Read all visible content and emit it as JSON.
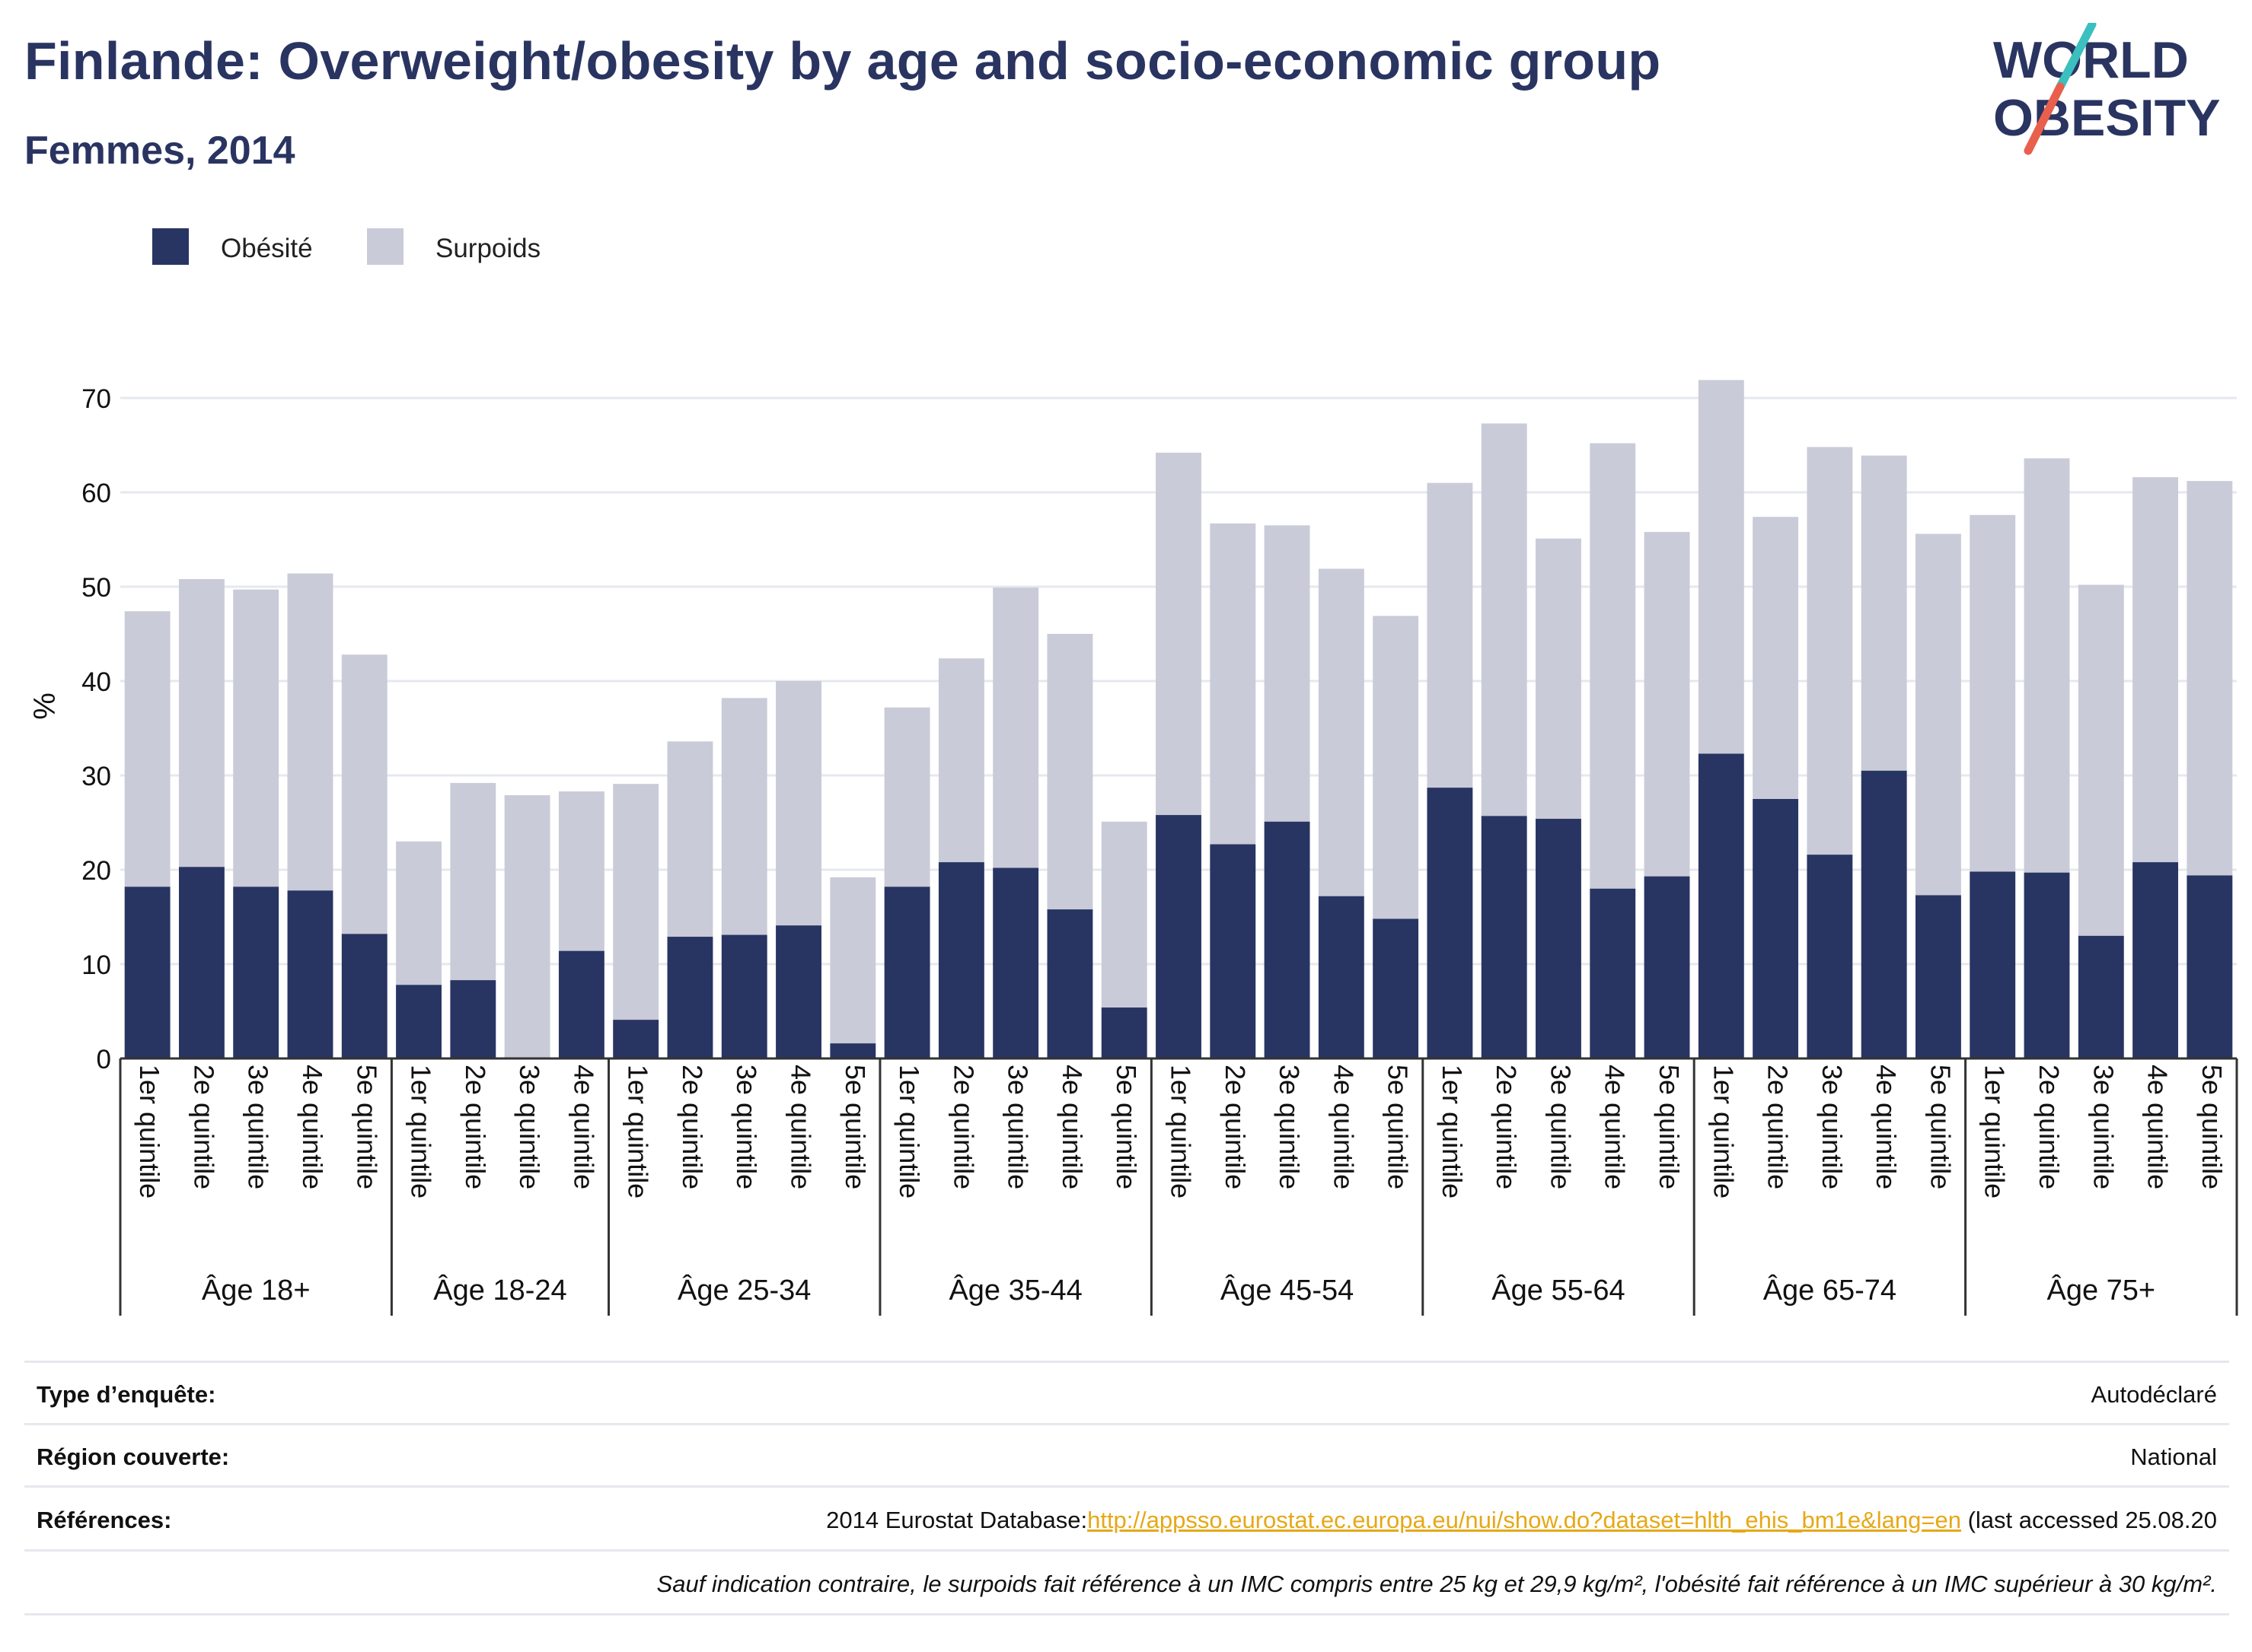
{
  "header": {
    "title": "Finlande: Overweight/obesity by age and socio-economic group",
    "subtitle": "Femmes, 2014"
  },
  "logo": {
    "line1": "WORLD",
    "line2": "OBESITY",
    "colors": {
      "text": "#2a3461",
      "slash_top": "#3bbfbf",
      "slash_bottom": "#e8604c"
    }
  },
  "colors": {
    "obesity": "#283562",
    "overweight": "#c9cbd8",
    "grid": "#e6e8ef",
    "axis": "#333333",
    "link": "#e6a817"
  },
  "chart_data": {
    "type": "bar",
    "stacked": true,
    "ylabel": "%",
    "ylim": [
      0,
      72
    ],
    "yticks": [
      0,
      10,
      20,
      30,
      40,
      50,
      60,
      70
    ],
    "grid": true,
    "legend_position": "top-left",
    "series": [
      {
        "name": "Obésité",
        "color": "#283562"
      },
      {
        "name": "Surpoids",
        "color": "#c9cbd8"
      }
    ],
    "groups": [
      {
        "label": "Âge 18+",
        "bars": [
          {
            "category": "1er quintile",
            "obesity": 18.2,
            "total": 47.4
          },
          {
            "category": "2e quintile",
            "obesity": 20.3,
            "total": 50.8
          },
          {
            "category": "3e quintile",
            "obesity": 18.2,
            "total": 49.7
          },
          {
            "category": "4e quintile",
            "obesity": 17.8,
            "total": 51.4
          },
          {
            "category": "5e quintile",
            "obesity": 13.2,
            "total": 42.8
          }
        ]
      },
      {
        "label": "Âge 18-24",
        "bars": [
          {
            "category": "1er quintile",
            "obesity": 7.8,
            "total": 23.0
          },
          {
            "category": "2e quintile",
            "obesity": 8.3,
            "total": 29.2
          },
          {
            "category": "3e quintile",
            "obesity": 0,
            "total": 27.9
          },
          {
            "category": "4e quintile",
            "obesity": 11.4,
            "total": 28.3
          }
        ]
      },
      {
        "label": "Âge 25-34",
        "bars": [
          {
            "category": "1er quintile",
            "obesity": 4.1,
            "total": 29.1
          },
          {
            "category": "2e quintile",
            "obesity": 12.9,
            "total": 33.6
          },
          {
            "category": "3e quintile",
            "obesity": 13.1,
            "total": 38.2
          },
          {
            "category": "4e quintile",
            "obesity": 14.1,
            "total": 40.0
          },
          {
            "category": "5e quintile",
            "obesity": 1.6,
            "total": 19.2
          }
        ]
      },
      {
        "label": "Âge 35-44",
        "bars": [
          {
            "category": "1er quintile",
            "obesity": 18.2,
            "total": 37.2
          },
          {
            "category": "2e quintile",
            "obesity": 20.8,
            "total": 42.4
          },
          {
            "category": "3e quintile",
            "obesity": 20.2,
            "total": 49.9
          },
          {
            "category": "4e quintile",
            "obesity": 15.8,
            "total": 45.0
          },
          {
            "category": "5e quintile",
            "obesity": 5.4,
            "total": 25.1
          }
        ]
      },
      {
        "label": "Âge 45-54",
        "bars": [
          {
            "category": "1er quintile",
            "obesity": 25.8,
            "total": 64.2
          },
          {
            "category": "2e quintile",
            "obesity": 22.7,
            "total": 56.7
          },
          {
            "category": "3e quintile",
            "obesity": 25.1,
            "total": 56.5
          },
          {
            "category": "4e quintile",
            "obesity": 17.2,
            "total": 51.9
          },
          {
            "category": "5e quintile",
            "obesity": 14.8,
            "total": 46.9
          }
        ]
      },
      {
        "label": "Âge 55-64",
        "bars": [
          {
            "category": "1er quintile",
            "obesity": 28.7,
            "total": 61.0
          },
          {
            "category": "2e quintile",
            "obesity": 25.7,
            "total": 67.3
          },
          {
            "category": "3e quintile",
            "obesity": 25.4,
            "total": 55.1
          },
          {
            "category": "4e quintile",
            "obesity": 18.0,
            "total": 65.2
          },
          {
            "category": "5e quintile",
            "obesity": 19.3,
            "total": 55.8
          }
        ]
      },
      {
        "label": "Âge 65-74",
        "bars": [
          {
            "category": "1er quintile",
            "obesity": 32.3,
            "total": 71.9
          },
          {
            "category": "2e quintile",
            "obesity": 27.5,
            "total": 57.4
          },
          {
            "category": "3e quintile",
            "obesity": 21.6,
            "total": 64.8
          },
          {
            "category": "4e quintile",
            "obesity": 30.5,
            "total": 63.9
          },
          {
            "category": "5e quintile",
            "obesity": 17.3,
            "total": 55.6
          }
        ]
      },
      {
        "label": "Âge 75+",
        "bars": [
          {
            "category": "1er quintile",
            "obesity": 19.8,
            "total": 57.6
          },
          {
            "category": "2e quintile",
            "obesity": 19.7,
            "total": 63.6
          },
          {
            "category": "3e quintile",
            "obesity": 13.0,
            "total": 50.2
          },
          {
            "category": "4e quintile",
            "obesity": 20.8,
            "total": 61.6
          },
          {
            "category": "5e quintile",
            "obesity": 19.4,
            "total": 61.2
          }
        ]
      }
    ]
  },
  "footer": {
    "survey_type_label": "Type d’enquête:",
    "survey_type_value": "Autodéclaré",
    "region_label": "Région couverte:",
    "region_value": "National",
    "references_label": "Références:",
    "references_prefix": "2014 Eurostat Database:",
    "references_link": "http://appsso.eurostat.ec.europa.eu/nui/show.do?dataset=hlth_ehis_bm1e&lang=en",
    "references_suffix": " (last accessed 25.08.20",
    "note": "Sauf indication contraire, le surpoids fait référence à un IMC compris entre 25 kg et 29,9 kg/m², l'obésité fait référence à un IMC supérieur à 30 kg/m²."
  }
}
